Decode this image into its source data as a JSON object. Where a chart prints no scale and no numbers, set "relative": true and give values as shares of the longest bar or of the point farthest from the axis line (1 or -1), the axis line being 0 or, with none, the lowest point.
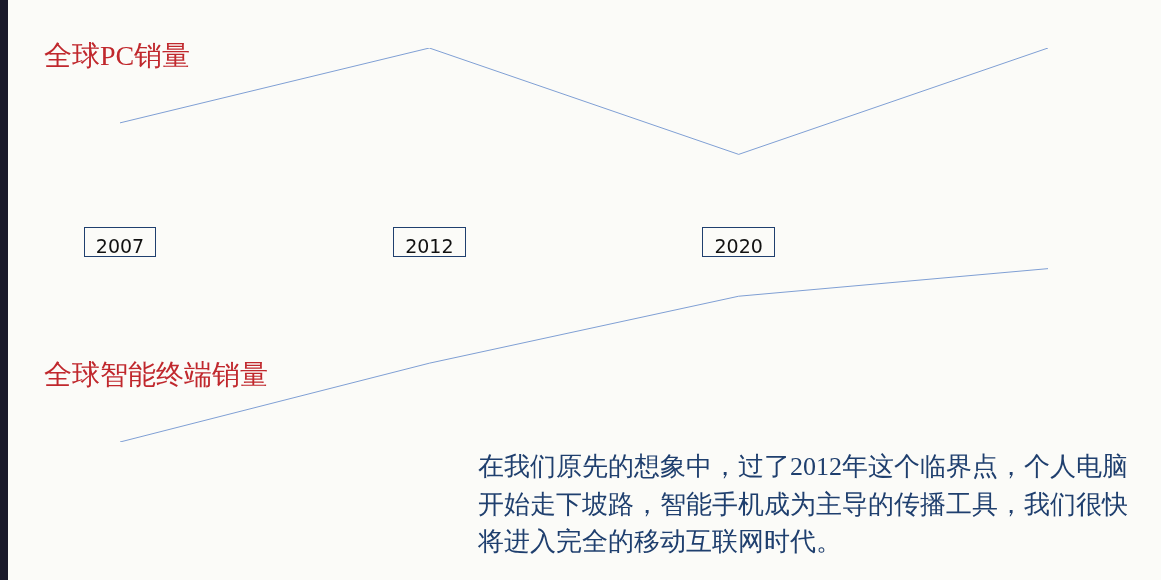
{
  "chart_data": {
    "type": "line",
    "relative": true,
    "categories": [
      "2007",
      "2012",
      "2020",
      null
    ],
    "series": [
      {
        "name": "全球PC销量",
        "color": "#7f9fd4",
        "values": [
          0.81,
          1.0,
          0.73,
          1.0
        ]
      },
      {
        "name": "全球智能终端销量",
        "color": "#7f9fd4",
        "values": [
          0,
          0.2,
          0.37,
          0.44
        ]
      }
    ],
    "marker": "none",
    "grid": false,
    "legend": false,
    "annotations": [
      "在我们原先的想象中，过了2012年这个临界点，个人电脑开始走下坡路，智能手机成为主导的传播工具，我们很快将进入完全的移动互联网时代。"
    ]
  }
}
